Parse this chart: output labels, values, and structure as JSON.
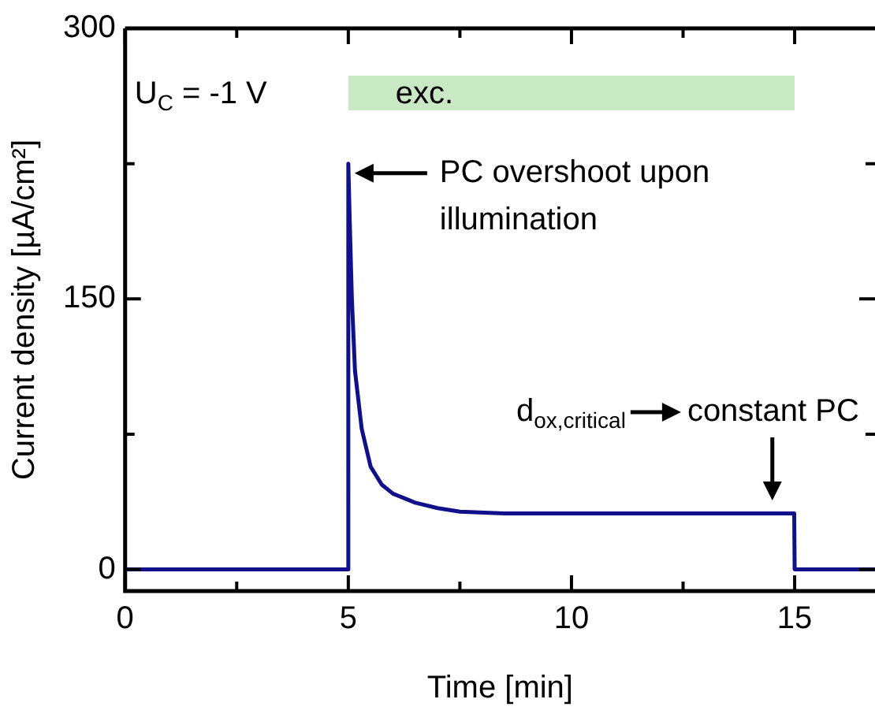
{
  "chart_data": {
    "type": "line",
    "xlabel": "Time [min]",
    "ylabel": "Current density [µA/cm²]",
    "x": [
      0,
      4.99,
      5.0,
      5.03,
      5.08,
      5.15,
      5.3,
      5.5,
      5.75,
      6.0,
      6.5,
      7.0,
      7.5,
      8.5,
      10,
      12,
      14,
      14.99,
      15.0,
      16.8
    ],
    "series": [
      {
        "color": "#10108a",
        "values": [
          0,
          0,
          225,
          195,
          150,
          110,
          78,
          57,
          47,
          42,
          37,
          34,
          32,
          31,
          31,
          31,
          31,
          31,
          0,
          0
        ]
      }
    ],
    "xlim": [
      0,
      16.8
    ],
    "ylim": [
      -12,
      300
    ],
    "xticks": [
      0,
      {
        "value": 2.5,
        "label": null
      },
      5,
      {
        "value": 7.5,
        "label": null
      },
      10,
      {
        "value": 12.5,
        "label": null
      },
      15
    ],
    "yticks": [
      0,
      {
        "value": 75,
        "label": null
      },
      150,
      {
        "value": 225,
        "label": null
      },
      300
    ],
    "marker": "none",
    "line_style": "solid",
    "bands": [
      {
        "axis": "x",
        "from": 5,
        "to": 15,
        "label": "exc.",
        "color": "#c9e9c4"
      }
    ],
    "annotations": [
      "U$_{C}$ = -1 V",
      {
        "text": "PC overshoot upon illumination",
        "x": 5,
        "y": 225
      },
      "d$_{ox,critical}$",
      {
        "text": "constant PC",
        "x": 14.5,
        "y": 33
      }
    ]
  }
}
